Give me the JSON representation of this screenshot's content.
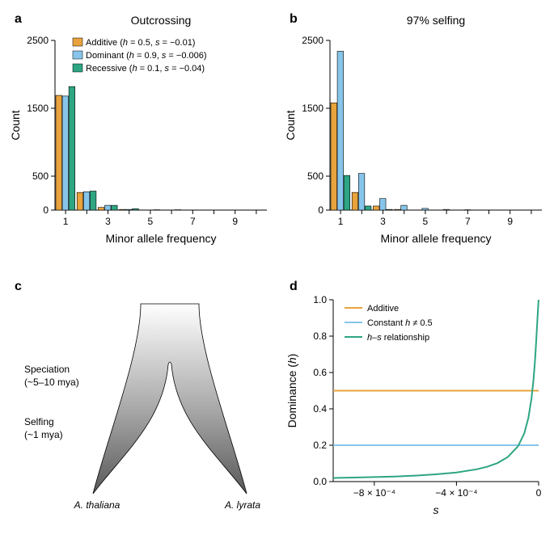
{
  "colors": {
    "additive": "#e8a33d",
    "dominant": "#87c5ea",
    "recessive": "#2ea583",
    "axis": "#000000",
    "bg": "#ffffff",
    "tree_light": "#ffffff",
    "tree_mid": "#a9a9a9",
    "tree_dark": "#595959"
  },
  "panelA": {
    "letter": "a",
    "title": "Outcrossing",
    "xlabel": "Minor allele frequency",
    "ylabel": "Count",
    "ylim": [
      0,
      2500
    ],
    "yticks": [
      0,
      500,
      1500,
      2500
    ],
    "xticks": [
      1,
      3,
      5,
      7,
      9
    ],
    "categories": [
      1,
      2,
      3,
      4,
      5,
      6,
      7,
      8,
      9,
      10
    ],
    "series": [
      {
        "key": "additive",
        "values": [
          1690,
          260,
          40,
          10,
          0,
          0,
          0,
          0,
          0,
          0
        ]
      },
      {
        "key": "dominant",
        "values": [
          1680,
          270,
          70,
          10,
          0,
          0,
          0,
          0,
          0,
          0
        ]
      },
      {
        "key": "recessive",
        "values": [
          1820,
          280,
          70,
          20,
          5,
          5,
          0,
          0,
          0,
          0
        ]
      }
    ],
    "legend": [
      {
        "key": "additive",
        "label_prefix": "Additive (",
        "h_lbl": "h",
        "h_val": " = 0.5, ",
        "s_lbl": "s",
        "s_val": " = −0.01)"
      },
      {
        "key": "dominant",
        "label_prefix": "Dominant (",
        "h_lbl": "h",
        "h_val": " = 0.9, ",
        "s_lbl": "s",
        "s_val": " = −0.006)"
      },
      {
        "key": "recessive",
        "label_prefix": "Recessive (",
        "h_lbl": "h",
        "h_val": " = 0.1, ",
        "s_lbl": "s",
        "s_val": " = −0.04)"
      }
    ]
  },
  "panelB": {
    "letter": "b",
    "title": "97% selfing",
    "xlabel": "Minor allele frequency",
    "ylabel": "Count",
    "ylim": [
      0,
      2500
    ],
    "yticks": [
      0,
      500,
      1500,
      2500
    ],
    "xticks": [
      1,
      3,
      5,
      7,
      9
    ],
    "categories": [
      1,
      2,
      3,
      4,
      5,
      6,
      7,
      8,
      9,
      10
    ],
    "series": [
      {
        "key": "additive",
        "values": [
          1580,
          260,
          60,
          10,
          0,
          0,
          0,
          0,
          0,
          0
        ]
      },
      {
        "key": "dominant",
        "values": [
          2340,
          540,
          170,
          70,
          25,
          10,
          5,
          0,
          0,
          0
        ]
      },
      {
        "key": "recessive",
        "values": [
          510,
          60,
          10,
          0,
          0,
          0,
          0,
          0,
          0,
          0
        ]
      }
    ]
  },
  "panelC": {
    "letter": "c",
    "speciation_label": "Speciation",
    "speciation_time": "(~5–10 mya)",
    "selfing_label": "Selfing",
    "selfing_time": "(~1 mya)",
    "species_left": "A. thaliana",
    "species_right": "A. lyrata"
  },
  "panelD": {
    "letter": "d",
    "xlabel": "s",
    "ylabel_prefix": "Dominance (",
    "ylabel_h": "h",
    "ylabel_suffix": ")",
    "xlim": [
      -0.001,
      0
    ],
    "xtick_labels": [
      "−8 × 10⁻⁴",
      "−4 × 10⁻⁴",
      "0"
    ],
    "xtick_vals": [
      -0.0008,
      -0.0004,
      0
    ],
    "ylim": [
      0,
      1.0
    ],
    "yticks": [
      0.0,
      0.2,
      0.4,
      0.6,
      0.8,
      1.0
    ],
    "legend": [
      {
        "key": "additive",
        "label": "Additive"
      },
      {
        "key": "dominant",
        "label_prefix": "Constant ",
        "h_lbl": "h",
        "suffix": " ≠ 0.5"
      },
      {
        "key": "recessive",
        "h_lbl": "h",
        "mid": "–",
        "s_lbl": "s",
        "suffix": " relationship"
      }
    ],
    "lines": {
      "additive_y": 0.5,
      "constant_y": 0.2,
      "hs_curve": [
        [
          -0.001,
          0.02
        ],
        [
          -0.0009,
          0.022
        ],
        [
          -0.0008,
          0.025
        ],
        [
          -0.0007,
          0.028
        ],
        [
          -0.0006,
          0.033
        ],
        [
          -0.0005,
          0.04
        ],
        [
          -0.0004,
          0.05
        ],
        [
          -0.0003,
          0.068
        ],
        [
          -0.00025,
          0.082
        ],
        [
          -0.0002,
          0.102
        ],
        [
          -0.00015,
          0.135
        ],
        [
          -0.0001,
          0.195
        ],
        [
          -7e-05,
          0.265
        ],
        [
          -5e-05,
          0.35
        ],
        [
          -3.5e-05,
          0.455
        ],
        [
          -2.5e-05,
          0.56
        ],
        [
          -1.8e-05,
          0.66
        ],
        [
          -1.2e-05,
          0.77
        ],
        [
          -7e-06,
          0.87
        ],
        [
          -3e-06,
          0.95
        ],
        [
          0,
          1.0
        ]
      ]
    }
  }
}
